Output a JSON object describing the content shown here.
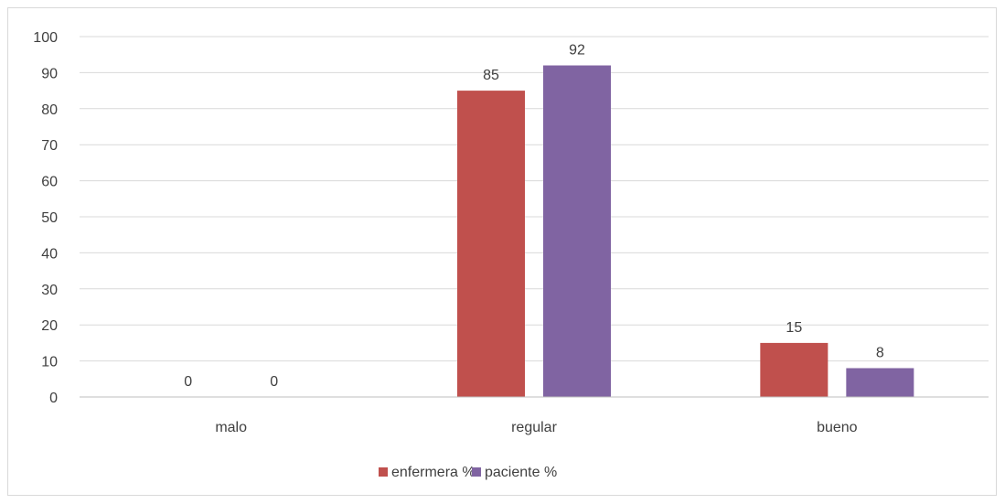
{
  "chart_data": {
    "type": "bar",
    "title": "",
    "xlabel": "",
    "ylabel": "",
    "categories": [
      "malo",
      "regular",
      "bueno"
    ],
    "series": [
      {
        "name": "enfermera %",
        "values": [
          0,
          85,
          15
        ],
        "color": "#c0504d"
      },
      {
        "name": "paciente %",
        "values": [
          0,
          92,
          8
        ],
        "color": "#8064a2"
      }
    ],
    "ylim": [
      0,
      100
    ],
    "yticks": [
      0,
      10,
      20,
      30,
      40,
      50,
      60,
      70,
      80,
      90,
      100
    ],
    "ytick_labels": [
      "0",
      "10",
      "20",
      "30",
      "40",
      "50",
      "60",
      "70",
      "80",
      "90",
      "100"
    ],
    "data_labels": [
      [
        "0",
        "85",
        "15"
      ],
      [
        "0",
        "92",
        "8"
      ]
    ],
    "grid": true,
    "legend_position": "bottom",
    "gridline_color": "#d9d9d9",
    "axis_color": "#bfbfbf",
    "text_color": "#404040"
  }
}
